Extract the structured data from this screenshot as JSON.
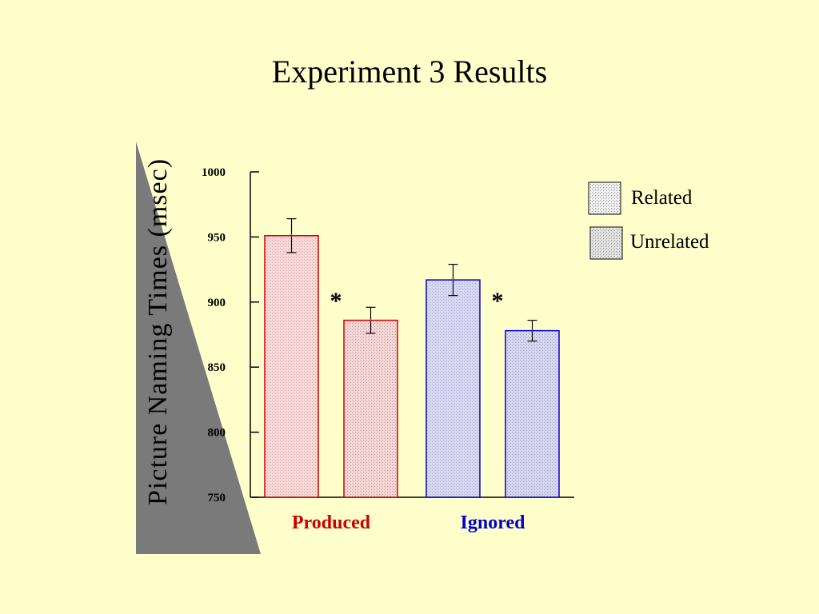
{
  "slide": {
    "title": "Experiment 3 Results"
  },
  "chart_data": {
    "type": "bar",
    "title": "Experiment 3 Results",
    "ylabel": "Picture Naming Times (msec)",
    "xlabel": "",
    "ylim": [
      750,
      1000
    ],
    "yticks": [
      1000,
      950,
      900,
      850,
      800,
      750
    ],
    "categories": [
      "Produced",
      "Ignored"
    ],
    "category_colors": {
      "Produced": "#cc0000",
      "Ignored": "#0000cc"
    },
    "bar_fills": {
      "Produced": "#fbd7d7",
      "Ignored": "#d7d7f6"
    },
    "series": [
      {
        "name": "Related",
        "values": [
          951,
          917
        ],
        "error": [
          13,
          12
        ]
      },
      {
        "name": "Unrelated",
        "values": [
          886,
          878
        ],
        "error": [
          10,
          8
        ]
      }
    ],
    "annotations": [
      "*",
      "*"
    ],
    "legend": {
      "placement": "right",
      "entries": [
        "Related",
        "Unrelated"
      ]
    },
    "grid": false
  }
}
